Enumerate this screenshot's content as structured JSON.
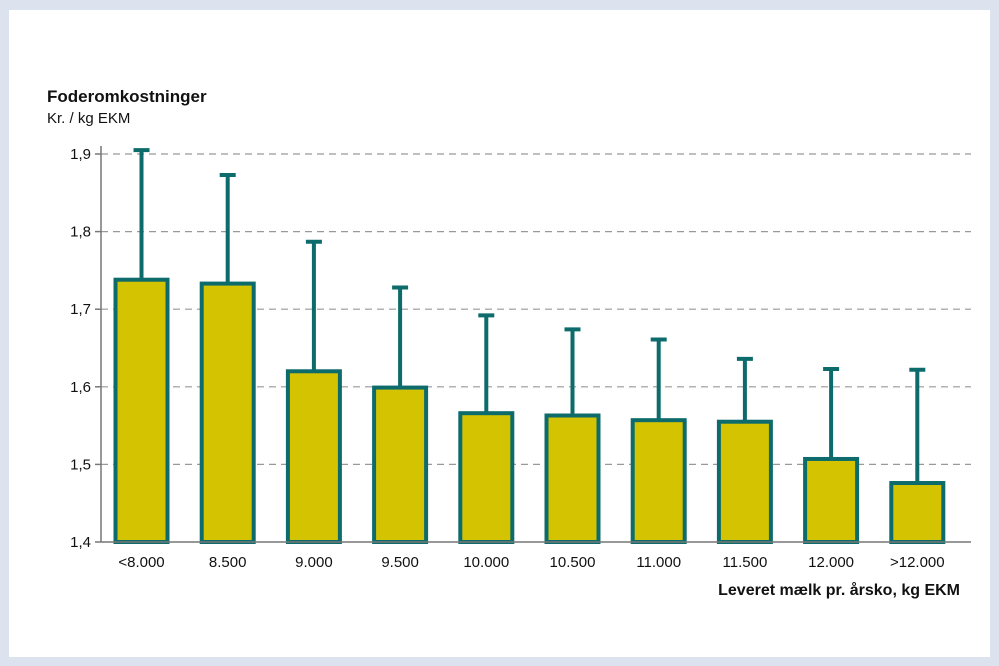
{
  "chart_data": {
    "type": "bar",
    "title": "Foderomkostninger",
    "ylabel": "Kr. / kg EKM",
    "xlabel": "Leveret mælk pr. årsko, kg EKM",
    "categories": [
      "<8.000",
      "8.500",
      "9.000",
      "9.500",
      "10.000",
      "10.500",
      "11.000",
      "11.500",
      "12.000",
      ">12.000"
    ],
    "values": [
      1.738,
      1.733,
      1.62,
      1.599,
      1.566,
      1.563,
      1.557,
      1.555,
      1.507,
      1.476
    ],
    "error_upper": [
      1.905,
      1.873,
      1.787,
      1.728,
      1.692,
      1.674,
      1.661,
      1.636,
      1.623,
      1.622
    ],
    "ylim": [
      1.4,
      1.9
    ],
    "yticks": [
      1.4,
      1.5,
      1.6,
      1.7,
      1.8,
      1.9
    ],
    "ytick_labels": [
      "1,4",
      "1,5",
      "1,6",
      "1,7",
      "1,8",
      "1,9"
    ],
    "grid": true,
    "colors": {
      "bar_fill": "#d4c300",
      "bar_stroke": "#0d6b6b",
      "error_bar": "#0d6b6b",
      "grid": "#999999",
      "axis": "#777777"
    }
  }
}
